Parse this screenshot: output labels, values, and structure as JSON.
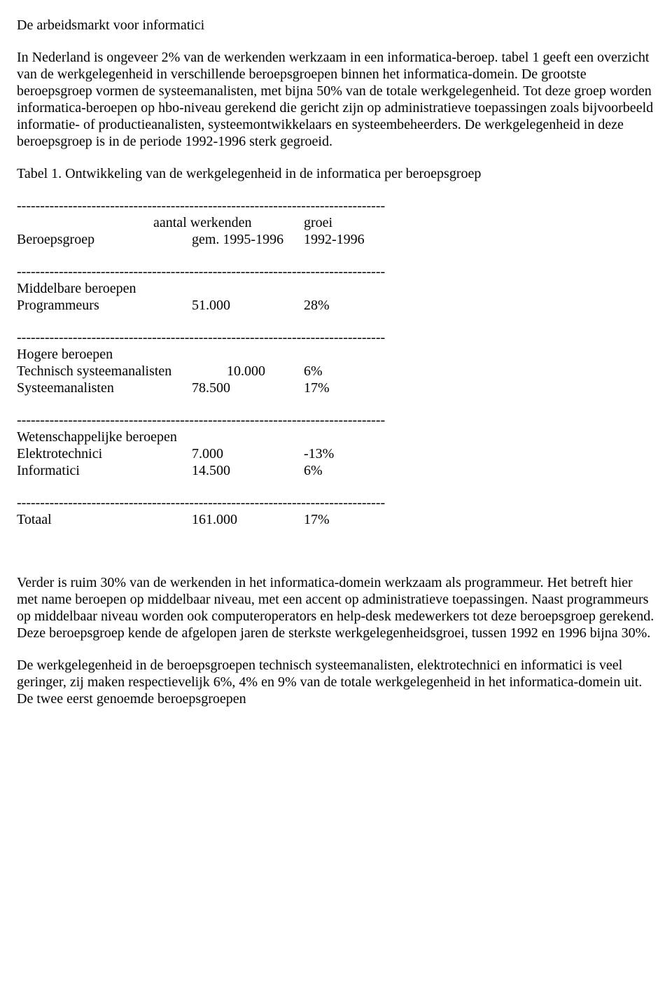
{
  "title": "De arbeidsmarkt voor informatici",
  "paragraph1": "In Nederland is ongeveer 2% van de werkenden werkzaam in een informatica-beroep. tabel 1 geeft een overzicht van de werkgelegenheid in verschillende beroepsgroepen binnen het informatica-domein. De grootste beroepsgroep vormen de systeemanalisten, met bijna 50% van de totale werkgelegenheid. Tot deze groep worden informatica-beroepen op hbo-niveau gerekend die gericht zijn op administratieve toepassingen zoals bijvoorbeeld informatie- of productieanalisten, systeemontwikkelaars en systeembeheerders. De werkgelegenheid in deze beroepsgroep is in de periode 1992-1996 sterk gegroeid.",
  "table_caption": "Tabel 1. Ontwikkeling van de werkgelegenheid in de informatica per beroepsgroep",
  "divider": "-------------------------------------------------------------------------------",
  "headers": {
    "aantal": "aantal werkenden",
    "groei": "groei",
    "beroepsgroep": "Beroepsgroep",
    "gem": "gem. 1995-1996",
    "jaren": "1992-1996"
  },
  "sections": {
    "middelbaar": "Middelbare beroepen",
    "hogere": "Hogere beroepen",
    "wetenschappelijke": "Wetenschappelijke beroepen"
  },
  "rows": {
    "programmeurs": {
      "label": "Programmeurs",
      "aantal": "51.000",
      "groei": "28%"
    },
    "tech_systeem": {
      "label": "Technisch systeemanalisten",
      "aantal": "10.000",
      "groei": "6%"
    },
    "systeem": {
      "label": "Systeemanalisten",
      "aantal": "78.500",
      "groei": "17%"
    },
    "elektro": {
      "label": "Elektrotechnici",
      "aantal": "7.000",
      "groei": "-13%"
    },
    "informatici": {
      "label": "Informatici",
      "aantal": "14.500",
      "groei": "6%"
    },
    "totaal": {
      "label": "Totaal",
      "aantal": "161.000",
      "groei": "17%"
    }
  },
  "paragraph2": "Verder is ruim 30% van de werkenden in het informatica-domein werkzaam als programmeur. Het betreft hier met name beroepen op middelbaar niveau, met een accent op administratieve toepassingen. Naast programmeurs op middelbaar niveau worden ook computeroperators en help-desk medewerkers tot deze beroepsgroep gerekend. Deze beroepsgroep kende de afgelopen jaren de sterkste werkgelegenheidsgroei, tussen 1992 en 1996 bijna 30%.",
  "paragraph3": "De werkgelegenheid in de beroepsgroepen technisch systeemanalisten, elektrotechnici en informatici is veel geringer, zij maken respectievelijk 6%, 4% en 9% van de totale werkgelegenheid in het informatica-domein uit. De twee eerst genoemde beroepsgroepen"
}
